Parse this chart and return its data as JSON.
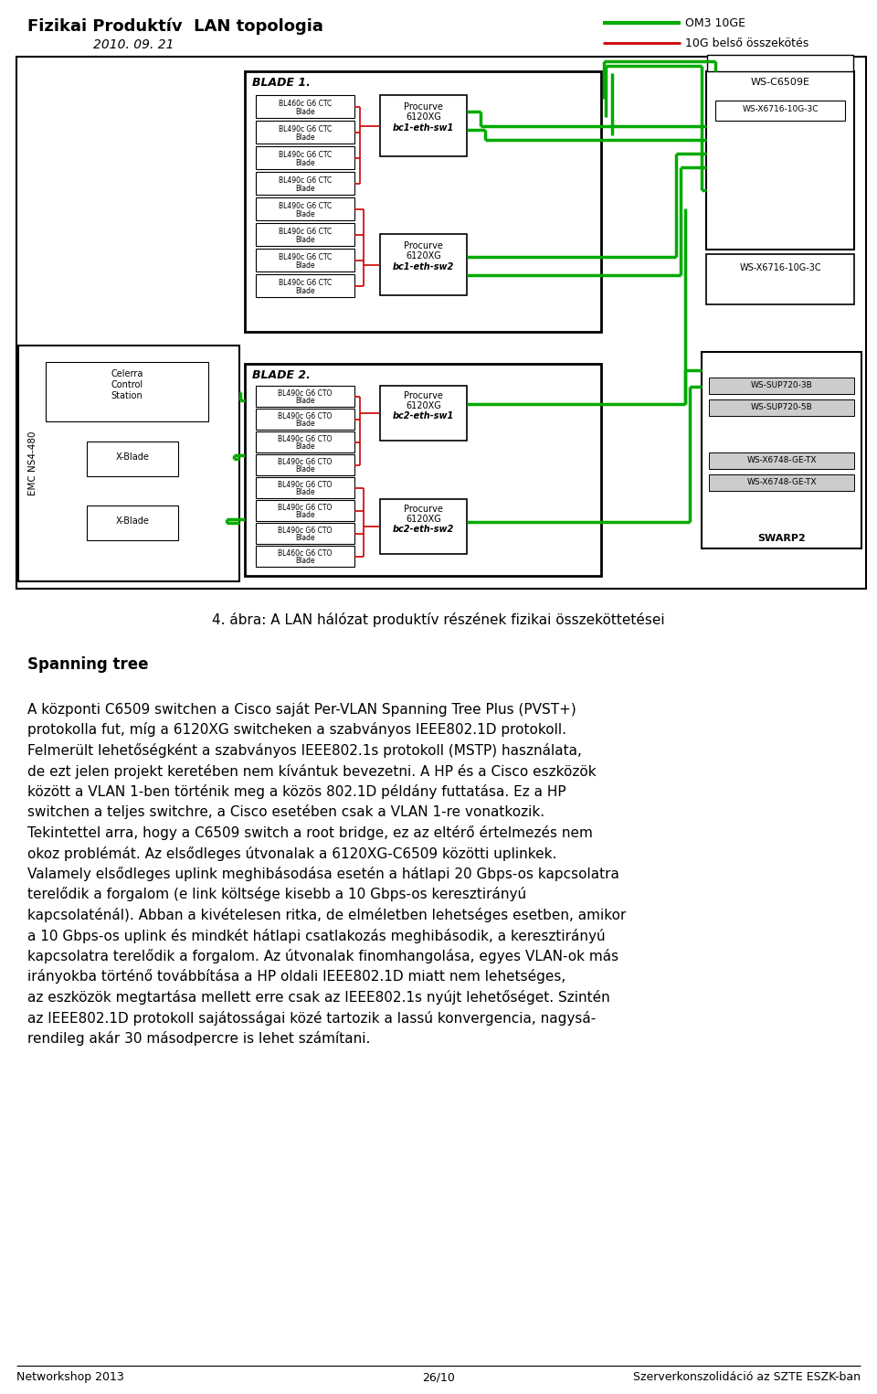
{
  "title": "Fizikai Produktív  LAN topologia",
  "subtitle": "2010. 09. 21",
  "legend_om3": "OM3 10GE",
  "legend_10g": "10G belső összekötés",
  "caption": "4. ábra: A LAN hálózat produktív részének fizikai összeköttetései",
  "section_heading": "Spanning tree",
  "body_lines": [
    "A központi C6509 switchen a Cisco saját Per-VLAN Spanning Tree Plus (PVST+)",
    "protokolla fut, míg a 6120XG switcheken a szabványos IEEE802.1D protokoll.",
    "Felmerült lehetőségként a szabványos IEEE802.1s protokoll (MSTP) használata,",
    "de ezt jelen projekt keretében nem kívántuk bevezetni. A HP és a Cisco eszközök",
    "között a VLAN 1-ben történik meg a közös 802.1D példány futtatása. Ez a HP",
    "switchen a teljes switchre, a Cisco esetében csak a VLAN 1-re vonatkozik.",
    "Tekintettel arra, hogy a C6509 switch a root bridge, ez az eltérő értelmezés nem",
    "okoz problémát. Az elsődleges útvonalak a 6120XG-C6509 közötti uplinkek.",
    "Valamely elsődleges uplink meghibásodása esetén a hátlapi 20 Gbps-os kapcsolatra",
    "terelődik a forgalom (e link költsége kisebb a 10 Gbps-os keresztirányú",
    "kapcsolaténál). Abban a kivételesen ritka, de elméletben lehetséges esetben, amikor",
    "a 10 Gbps-os uplink és mindkét hátlapi csatlakozás meghibásodik, a keresztirányú",
    "kapcsolatra terelődik a forgalom. Az útvonalak finomhangolása, egyes VLAN-ok más",
    "irányokba történő továbbítása a HP oldali IEEE802.1D miatt nem lehetséges,",
    "az eszközök megtartása mellett erre csak az IEEE802.1s nyújt lehetőséget. Szintén",
    "az IEEE802.1D protokoll sajátosságai közé tartozik a lassú konvergencia, nagysá-",
    "rendileg akár 30 másodpercre is lehet számítani."
  ],
  "footer_left": "Networkshop 2013",
  "footer_center": "26/10",
  "footer_right": "Szerverkonszolidáció az SZTE ESZK-ban",
  "bg_color": "#ffffff",
  "text_color": "#000000",
  "green_color": "#00aa00",
  "red_color": "#cc0000",
  "light_gray": "#cccccc"
}
